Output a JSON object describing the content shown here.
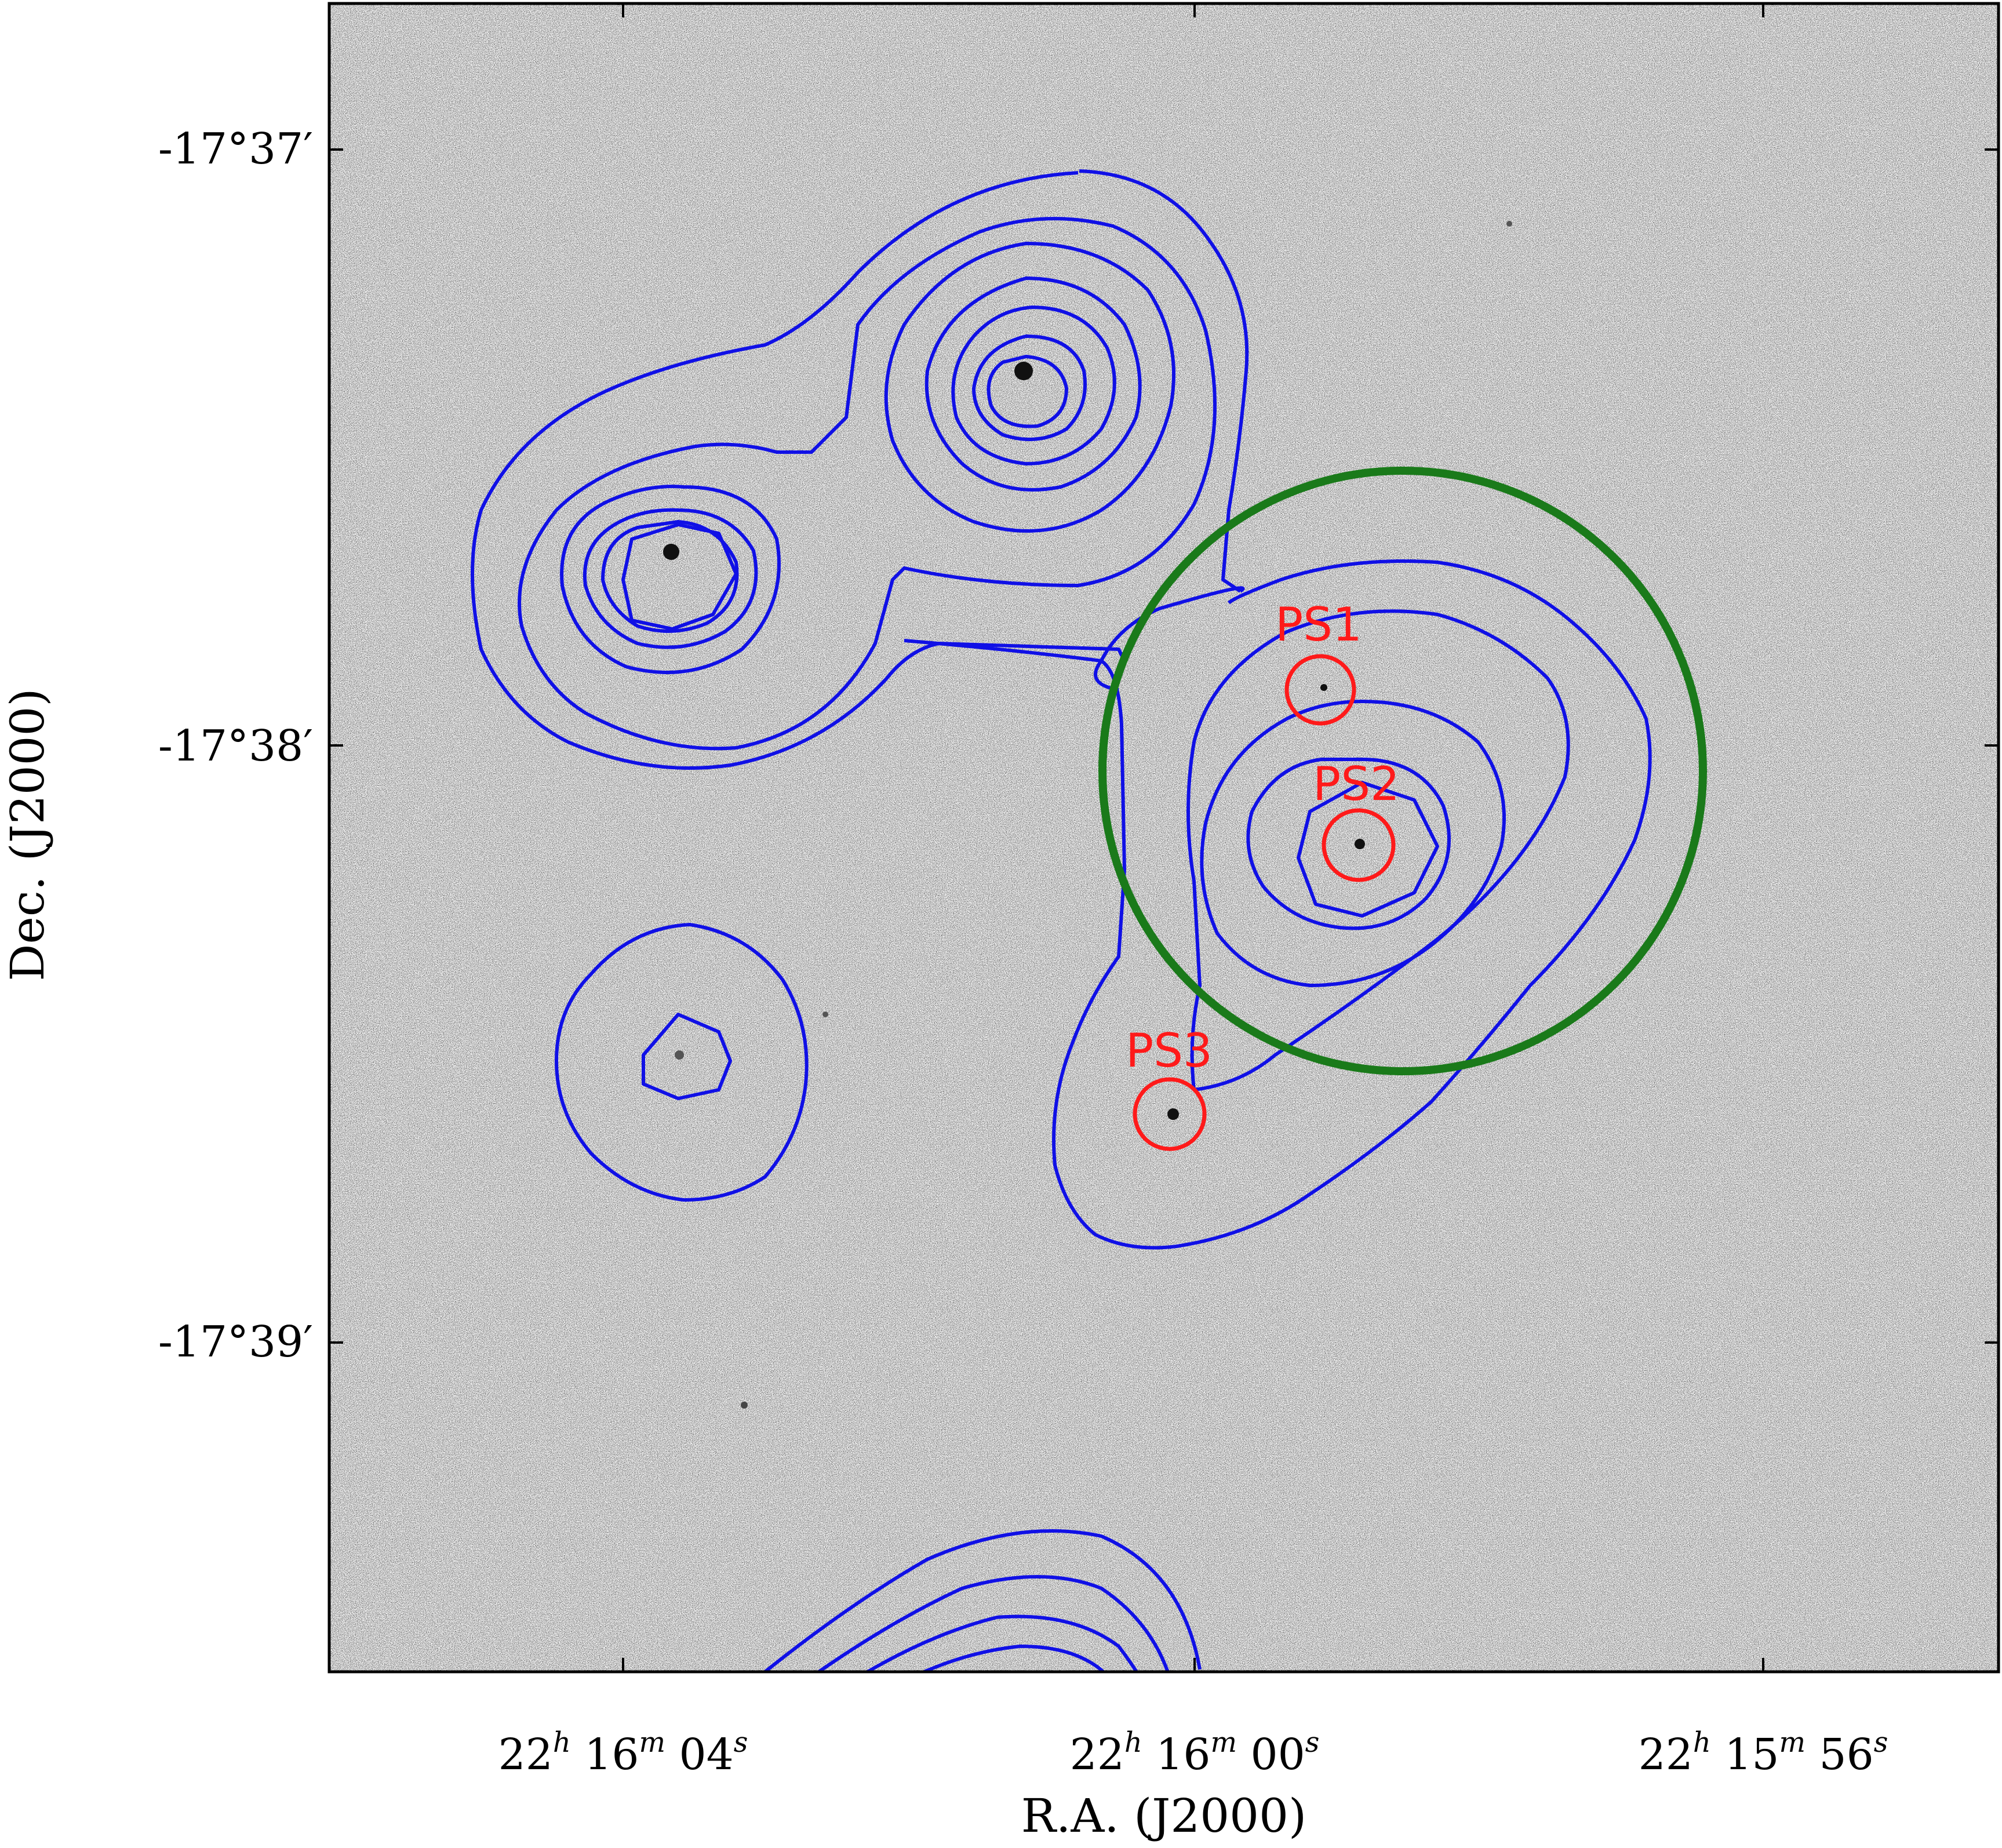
{
  "chart_data": {
    "type": "image",
    "xlabel": "R.A. (J2000)",
    "ylabel": "Dec. (J2000)",
    "x_ticks": [
      {
        "h": "22",
        "m": "16",
        "s": "04"
      },
      {
        "h": "22",
        "m": "16",
        "s": "00"
      },
      {
        "h": "22",
        "m": "15",
        "s": "56"
      }
    ],
    "y_ticks": [
      "-17°37′",
      "-17°38′",
      "-17°39′"
    ],
    "sources": [
      {
        "label": "PS1",
        "color": "#ff1a1a"
      },
      {
        "label": "PS2",
        "color": "#ff1a1a"
      },
      {
        "label": "PS3",
        "color": "#ff1a1a"
      }
    ],
    "contour_color": "#1010e6",
    "region_color": "#1a7a1a",
    "background": "grayscale noise image",
    "units_superscripts": {
      "h": "h",
      "m": "m",
      "s": "s"
    }
  }
}
